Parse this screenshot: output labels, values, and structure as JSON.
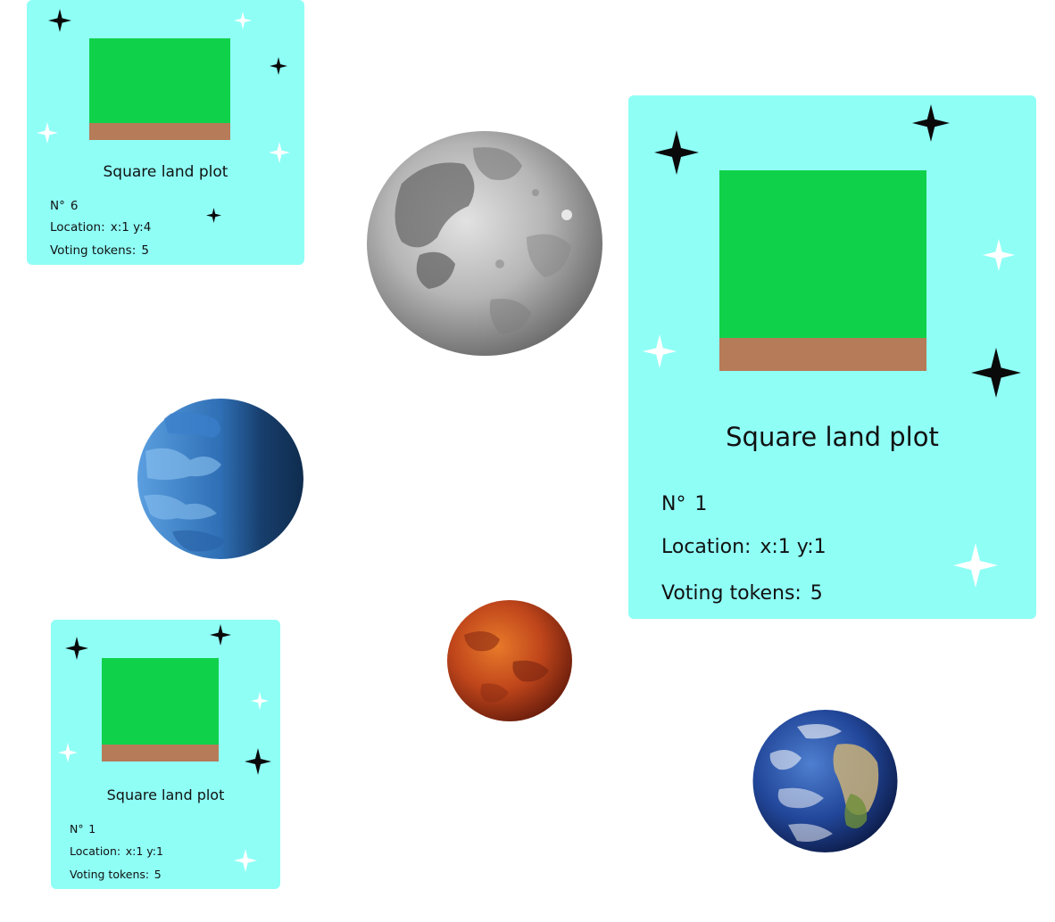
{
  "colors": {
    "card_background": "#8ffff6",
    "grass": "#10d24a",
    "soil": "#b67b58",
    "star_dark": "#0a0a0a",
    "star_light": "#ffffff",
    "text": "#111111"
  },
  "cards": [
    {
      "title": "Square land plot",
      "number_label": "N°",
      "number_value": "6",
      "location_label": "Location:",
      "location_value": "x:1 y:4",
      "tokens_label": "Voting tokens:",
      "tokens_value": "5"
    },
    {
      "title": "Square land plot",
      "number_label": "N°",
      "number_value": "1",
      "location_label": "Location:",
      "location_value": "x:1 y:1",
      "tokens_label": "Voting tokens:",
      "tokens_value": "5"
    },
    {
      "title": "Square land plot",
      "number_label": "N°",
      "number_value": "1",
      "location_label": "Location:",
      "location_value": "x:1 y:1",
      "tokens_label": "Voting tokens:",
      "tokens_value": "5"
    }
  ],
  "icons": {
    "star": "four-point-star-icon",
    "planets": [
      "moon-icon",
      "blue-planet-icon",
      "mars-icon",
      "earth-icon"
    ]
  }
}
